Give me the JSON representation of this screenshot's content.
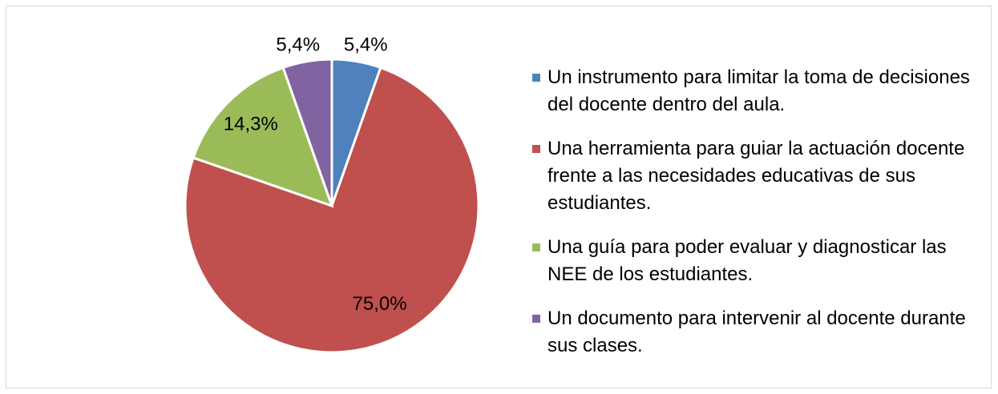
{
  "chart_data": {
    "type": "pie",
    "categories": [
      "Un instrumento para limitar la toma de decisiones del docente dentro del aula.",
      "Una herramienta para guiar la actuación docente frente a las necesidades educativas de sus estudiantes.",
      "Una guía para poder evaluar y diagnosticar las NEE de los estudiantes.",
      "Un documento para intervenir al docente durante sus clases."
    ],
    "values": [
      5.4,
      75.0,
      14.3,
      5.4
    ],
    "value_labels": [
      "5,4%",
      "75,0%",
      "14,3%",
      "5,4%"
    ],
    "colors": [
      "#4f81bd",
      "#c0504d",
      "#9bbb59",
      "#8064a2"
    ],
    "legend": "right"
  }
}
